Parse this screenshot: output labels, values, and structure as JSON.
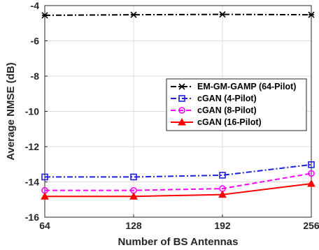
{
  "chart_data": {
    "type": "line",
    "title": "",
    "xlabel": "Number of BS Antennas",
    "ylabel": "Average NMSE (dB)",
    "x": [
      64,
      128,
      192,
      256
    ],
    "xticks": [
      "64",
      "128",
      "192",
      "256"
    ],
    "xlim": [
      64,
      256
    ],
    "ylim": [
      -16,
      -4
    ],
    "yticks": [
      "-16",
      "-14",
      "-12",
      "-10",
      "-8",
      "-6",
      "-4"
    ],
    "grid": true,
    "legend_position": "center-right",
    "series": [
      {
        "name": "EM-GM-GAMP (64-Pilot)",
        "values": [
          -4.55,
          -4.52,
          -4.5,
          -4.52
        ],
        "color": "#000000",
        "dash": "dashdot",
        "marker": "x"
      },
      {
        "name": "cGAN (4-Pilot)",
        "values": [
          -13.72,
          -13.72,
          -13.62,
          -13.02
        ],
        "color": "#1f1fe0",
        "dash": "dashdot",
        "marker": "square"
      },
      {
        "name": "cGAN (8-Pilot)",
        "values": [
          -14.48,
          -14.48,
          -14.38,
          -13.52
        ],
        "color": "#ff00ff",
        "dash": "dash",
        "marker": "circle"
      },
      {
        "name": "cGAN (16-Pilot)",
        "values": [
          -14.82,
          -14.82,
          -14.72,
          -14.1
        ],
        "color": "#ff0000",
        "dash": "solid",
        "marker": "triangle"
      }
    ]
  }
}
